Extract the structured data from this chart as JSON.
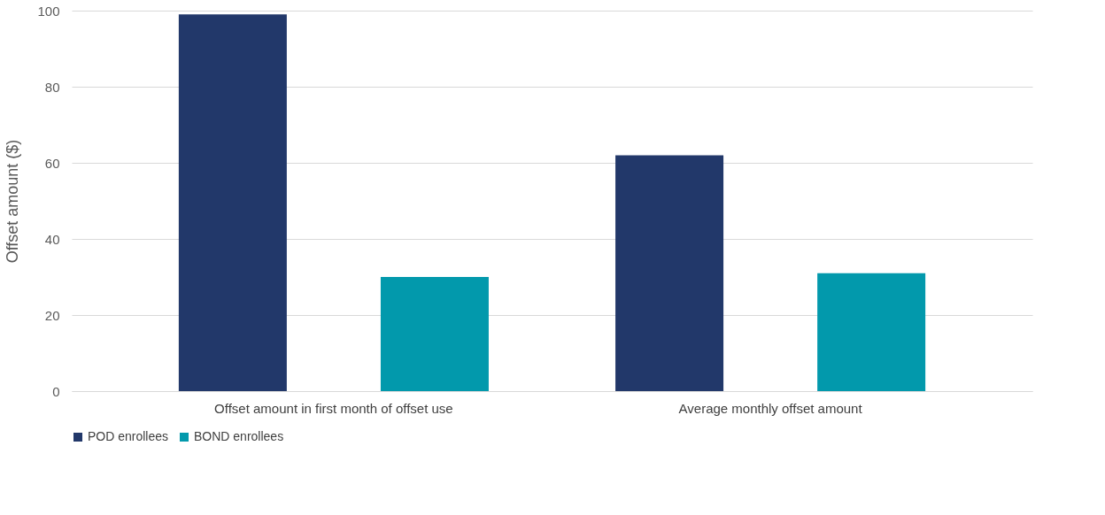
{
  "chart_data": {
    "type": "bar",
    "ylabel": "Offset amount ($)",
    "categories": [
      "Offset amount in first month of offset use",
      "Average monthly offset amount"
    ],
    "series": [
      {
        "name": "POD enrollees",
        "color": "#22386a",
        "values": [
          99,
          62
        ]
      },
      {
        "name": "BOND enrollees",
        "color": "#0299ac",
        "values": [
          30,
          31
        ]
      }
    ],
    "ylim": [
      0,
      100
    ],
    "yticks": [
      0,
      20,
      40,
      60,
      80,
      100
    ],
    "grid": "y",
    "legend": "bottom"
  }
}
